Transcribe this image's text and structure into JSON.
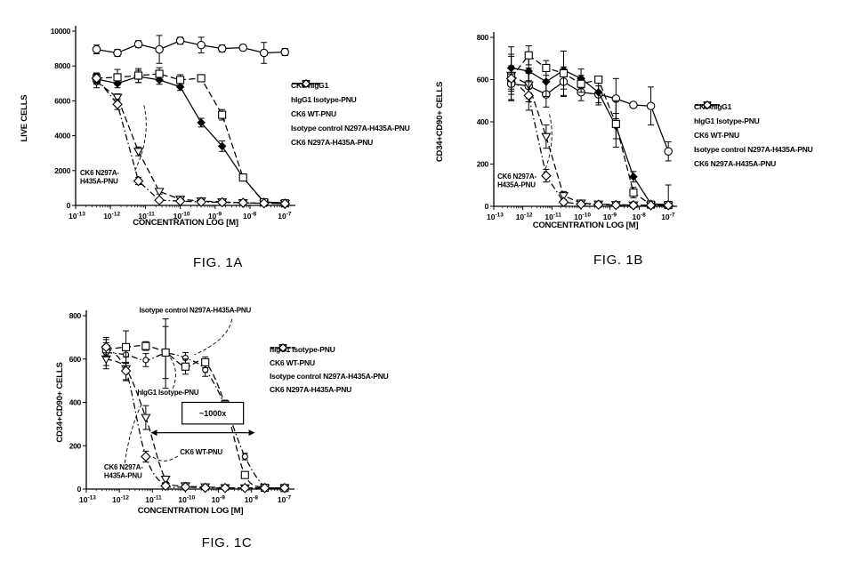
{
  "page": {
    "background": "#ffffff",
    "ink": "#000000"
  },
  "chart_data": [
    {
      "id": "fig1a",
      "type": "line",
      "title": "FIG. 1A",
      "xlabel": "CONCENTRATION LOG [M]",
      "ylabel": "LIVE CELLS",
      "x_scale": "log10",
      "xlim_log10": [
        -13,
        -6.7
      ],
      "x_tick_exponents": [
        -13,
        -12,
        -11,
        -10,
        -9,
        -8,
        -7
      ],
      "ylim": [
        0,
        10000
      ],
      "y_ticks": [
        0,
        2000,
        4000,
        6000,
        8000,
        10000
      ],
      "grid": false,
      "legend_position": "right",
      "x_log10": [
        -12.4,
        -11.8,
        -11.2,
        -10.6,
        -10,
        -9.4,
        -8.8,
        -8.2,
        -7.6,
        -7
      ],
      "series": [
        {
          "name": "CK6-hIgG1",
          "marker": "circle-open",
          "line": "solid",
          "smooth": false,
          "values": [
            8950,
            8750,
            9250,
            8950,
            9450,
            9200,
            9000,
            9050,
            8750,
            8800
          ],
          "err": [
            250,
            200,
            200,
            800,
            200,
            450,
            200,
            150,
            600,
            200
          ]
        },
        {
          "name": "hIgG1 Isotype-PNU",
          "marker": "diamond-filled",
          "line": "solid",
          "smooth": false,
          "values": [
            7250,
            7000,
            7400,
            7200,
            6800,
            4750,
            3400,
            1600,
            200,
            150
          ],
          "err": [
            300,
            250,
            350,
            250,
            200,
            250,
            300,
            150,
            80,
            60
          ]
        },
        {
          "name": "CK6 WT-PNU",
          "marker": "triangle-down-open",
          "line": "dashed",
          "smooth": false,
          "values": [
            7100,
            6200,
            3100,
            800,
            350,
            250,
            200,
            150,
            120,
            100
          ],
          "err": [
            350,
            200,
            250,
            150,
            100,
            80,
            60,
            50,
            40,
            40
          ]
        },
        {
          "name": "Isotype control N297A-H435A-PNU",
          "marker": "square-open",
          "line": "dashed",
          "smooth": false,
          "values": [
            7300,
            7350,
            7450,
            7550,
            7200,
            7300,
            5200,
            1600,
            180,
            120
          ],
          "err": [
            300,
            450,
            400,
            350,
            300,
            150,
            300,
            150,
            60,
            50
          ]
        },
        {
          "name": "CK6 N297A-H435A-PNU",
          "marker": "diamond-open",
          "line": "dashdot",
          "smooth": false,
          "values": [
            7300,
            5800,
            1400,
            300,
            250,
            200,
            180,
            150,
            120,
            100
          ],
          "err": [
            250,
            300,
            200,
            100,
            80,
            60,
            50,
            40,
            40,
            40
          ]
        }
      ],
      "annotations": [
        {
          "kind": "label",
          "lines": [
            "CK6 N297A-",
            "H435A-PNU"
          ],
          "fx": 0.02,
          "fy": 0.79,
          "leader": [
            [
              0.27,
              0.8
            ],
            [
              0.345,
              0.6
            ],
            [
              0.31,
              0.42
            ]
          ]
        }
      ]
    },
    {
      "id": "fig1b",
      "type": "line",
      "title": "FIG. 1B",
      "xlabel": "CONCENTRATION LOG [M]",
      "ylabel": "CD34+CD90+ CELLS",
      "x_scale": "log10",
      "xlim_log10": [
        -13,
        -6.7
      ],
      "x_tick_exponents": [
        -13,
        -12,
        -11,
        -10,
        -9,
        -8,
        -7
      ],
      "ylim": [
        0,
        800
      ],
      "y_ticks": [
        0,
        200,
        400,
        600,
        800
      ],
      "grid": false,
      "legend_position": "right",
      "x_log10": [
        -12.4,
        -11.8,
        -11.2,
        -10.6,
        -10,
        -9.4,
        -8.8,
        -8.2,
        -7.6,
        -7
      ],
      "series": [
        {
          "name": "CK6-hIgG1",
          "marker": "circle-open",
          "line": "solid",
          "smooth": false,
          "values": [
            580,
            570,
            530,
            590,
            540,
            530,
            510,
            480,
            475,
            260
          ],
          "err": [
            75,
            60,
            60,
            70,
            40,
            40,
            95,
            0,
            90,
            45
          ]
        },
        {
          "name": "hIgG1 Isotype-PNU",
          "marker": "diamond-filled",
          "line": "solid",
          "smooth": false,
          "values": [
            655,
            640,
            590,
            645,
            605,
            540,
            380,
            140,
            12,
            8
          ],
          "err": [
            100,
            60,
            70,
            90,
            45,
            60,
            60,
            25,
            10,
            10
          ]
        },
        {
          "name": "CK6 WT-PNU",
          "marker": "triangle-down-open",
          "line": "dashed",
          "smooth": false,
          "values": [
            620,
            575,
            330,
            50,
            15,
            10,
            8,
            6,
            5,
            5
          ],
          "err": [
            90,
            80,
            55,
            20,
            10,
            8,
            5,
            5,
            5,
            5
          ]
        },
        {
          "name": "Isotype control N297A-H435A-PNU",
          "marker": "square-open",
          "line": "dashed",
          "smooth": false,
          "values": [
            610,
            715,
            655,
            630,
            580,
            600,
            390,
            65,
            8,
            6
          ],
          "err": [
            110,
            45,
            35,
            105,
            40,
            10,
            110,
            25,
            8,
            95
          ]
        },
        {
          "name": "CK6 N297A-H435A-PNU",
          "marker": "diamond-open",
          "line": "dashdot",
          "smooth": false,
          "values": [
            605,
            525,
            145,
            20,
            10,
            8,
            6,
            5,
            5,
            5
          ],
          "err": [
            60,
            70,
            30,
            12,
            8,
            5,
            5,
            5,
            5,
            5
          ]
        }
      ],
      "annotations": [
        {
          "kind": "label",
          "lines": [
            "CK6 N297A-",
            "H435A-PNU"
          ],
          "fx": 0.02,
          "fy": 0.8,
          "leader": [
            [
              0.27,
              0.81
            ],
            [
              0.345,
              0.62
            ],
            [
              0.3,
              0.44
            ]
          ]
        }
      ]
    },
    {
      "id": "fig1c",
      "type": "line",
      "title": "FIG. 1C",
      "xlabel": "CONCENTRATION LOG [M]",
      "ylabel": "CD34+CD90+ CELLS",
      "x_scale": "log10",
      "xlim_log10": [
        -13,
        -6.7
      ],
      "x_tick_exponents": [
        -13,
        -12,
        -11,
        -10,
        -9,
        -8,
        -7
      ],
      "ylim": [
        0,
        800
      ],
      "y_ticks": [
        0,
        200,
        400,
        600,
        800
      ],
      "grid": false,
      "legend_position": "right",
      "x_log10": [
        -12.4,
        -11.8,
        -11.2,
        -10.6,
        -10,
        -9.4,
        -8.8,
        -8.2,
        -7.6,
        -7
      ],
      "series": [
        {
          "name": "hIgG1 Isotype-PNU",
          "marker": "circle-small-open",
          "line": "dashdot",
          "smooth": true,
          "values": [
            630,
            620,
            595,
            625,
            605,
            550,
            385,
            150,
            12,
            6
          ],
          "err": [
            60,
            40,
            30,
            160,
            25,
            30,
            20,
            15,
            8,
            5
          ]
        },
        {
          "name": "CK6 WT-PNU",
          "marker": "triangle-down-open",
          "line": "dashed",
          "smooth": true,
          "values": [
            600,
            555,
            330,
            45,
            15,
            10,
            6,
            5,
            5,
            5
          ],
          "err": [
            45,
            55,
            55,
            15,
            10,
            5,
            5,
            5,
            5,
            5
          ]
        },
        {
          "name": "Isotype control N297A-H435A-PNU",
          "marker": "square-open",
          "line": "dashed",
          "smooth": true,
          "values": [
            645,
            655,
            660,
            630,
            565,
            585,
            390,
            65,
            6,
            5
          ],
          "err": [
            30,
            75,
            20,
            120,
            35,
            25,
            20,
            15,
            5,
            5
          ]
        },
        {
          "name": "CK6 N297A-H435A-PNU",
          "marker": "diamond-open",
          "line": "dashdot",
          "smooth": true,
          "values": [
            655,
            545,
            150,
            15,
            10,
            6,
            5,
            5,
            5,
            5
          ],
          "err": [
            45,
            40,
            25,
            10,
            5,
            5,
            5,
            5,
            5,
            5
          ]
        }
      ],
      "annotations": [
        {
          "kind": "label",
          "lines": [
            "Isotype control N297A-H435A-PNU"
          ],
          "fx": 0.255,
          "fy": -0.055,
          "leader": [
            [
              0.7,
              0.02
            ],
            [
              0.68,
              0.14
            ],
            [
              0.52,
              0.225
            ]
          ]
        },
        {
          "kind": "label",
          "lines": [
            "hIgG1 Isotype-PNU"
          ],
          "fx": 0.245,
          "fy": 0.42,
          "leader": [
            [
              0.415,
              0.42
            ],
            [
              0.45,
              0.32
            ],
            [
              0.4,
              0.235
            ]
          ]
        },
        {
          "kind": "boxed-label",
          "text": "~1000x",
          "fx0": 0.46,
          "fy0": 0.5,
          "fx1": 0.755,
          "fy1": 0.625
        },
        {
          "kind": "double-arrow",
          "fx0": 0.31,
          "fx1": 0.81,
          "fy": 0.675
        },
        {
          "kind": "label",
          "lines": [
            "CK6 WT-PNU"
          ],
          "fx": 0.45,
          "fy": 0.765,
          "leader": [
            [
              0.44,
              0.81
            ],
            [
              0.37,
              0.865
            ],
            [
              0.315,
              0.81
            ]
          ]
        },
        {
          "kind": "label",
          "lines": [
            "CK6 N297A-",
            "H435A-PNU"
          ],
          "fx": 0.085,
          "fy": 0.85,
          "leader": [
            [
              0.185,
              0.85
            ],
            [
              0.21,
              0.64
            ],
            [
              0.27,
              0.5
            ]
          ]
        }
      ]
    }
  ]
}
